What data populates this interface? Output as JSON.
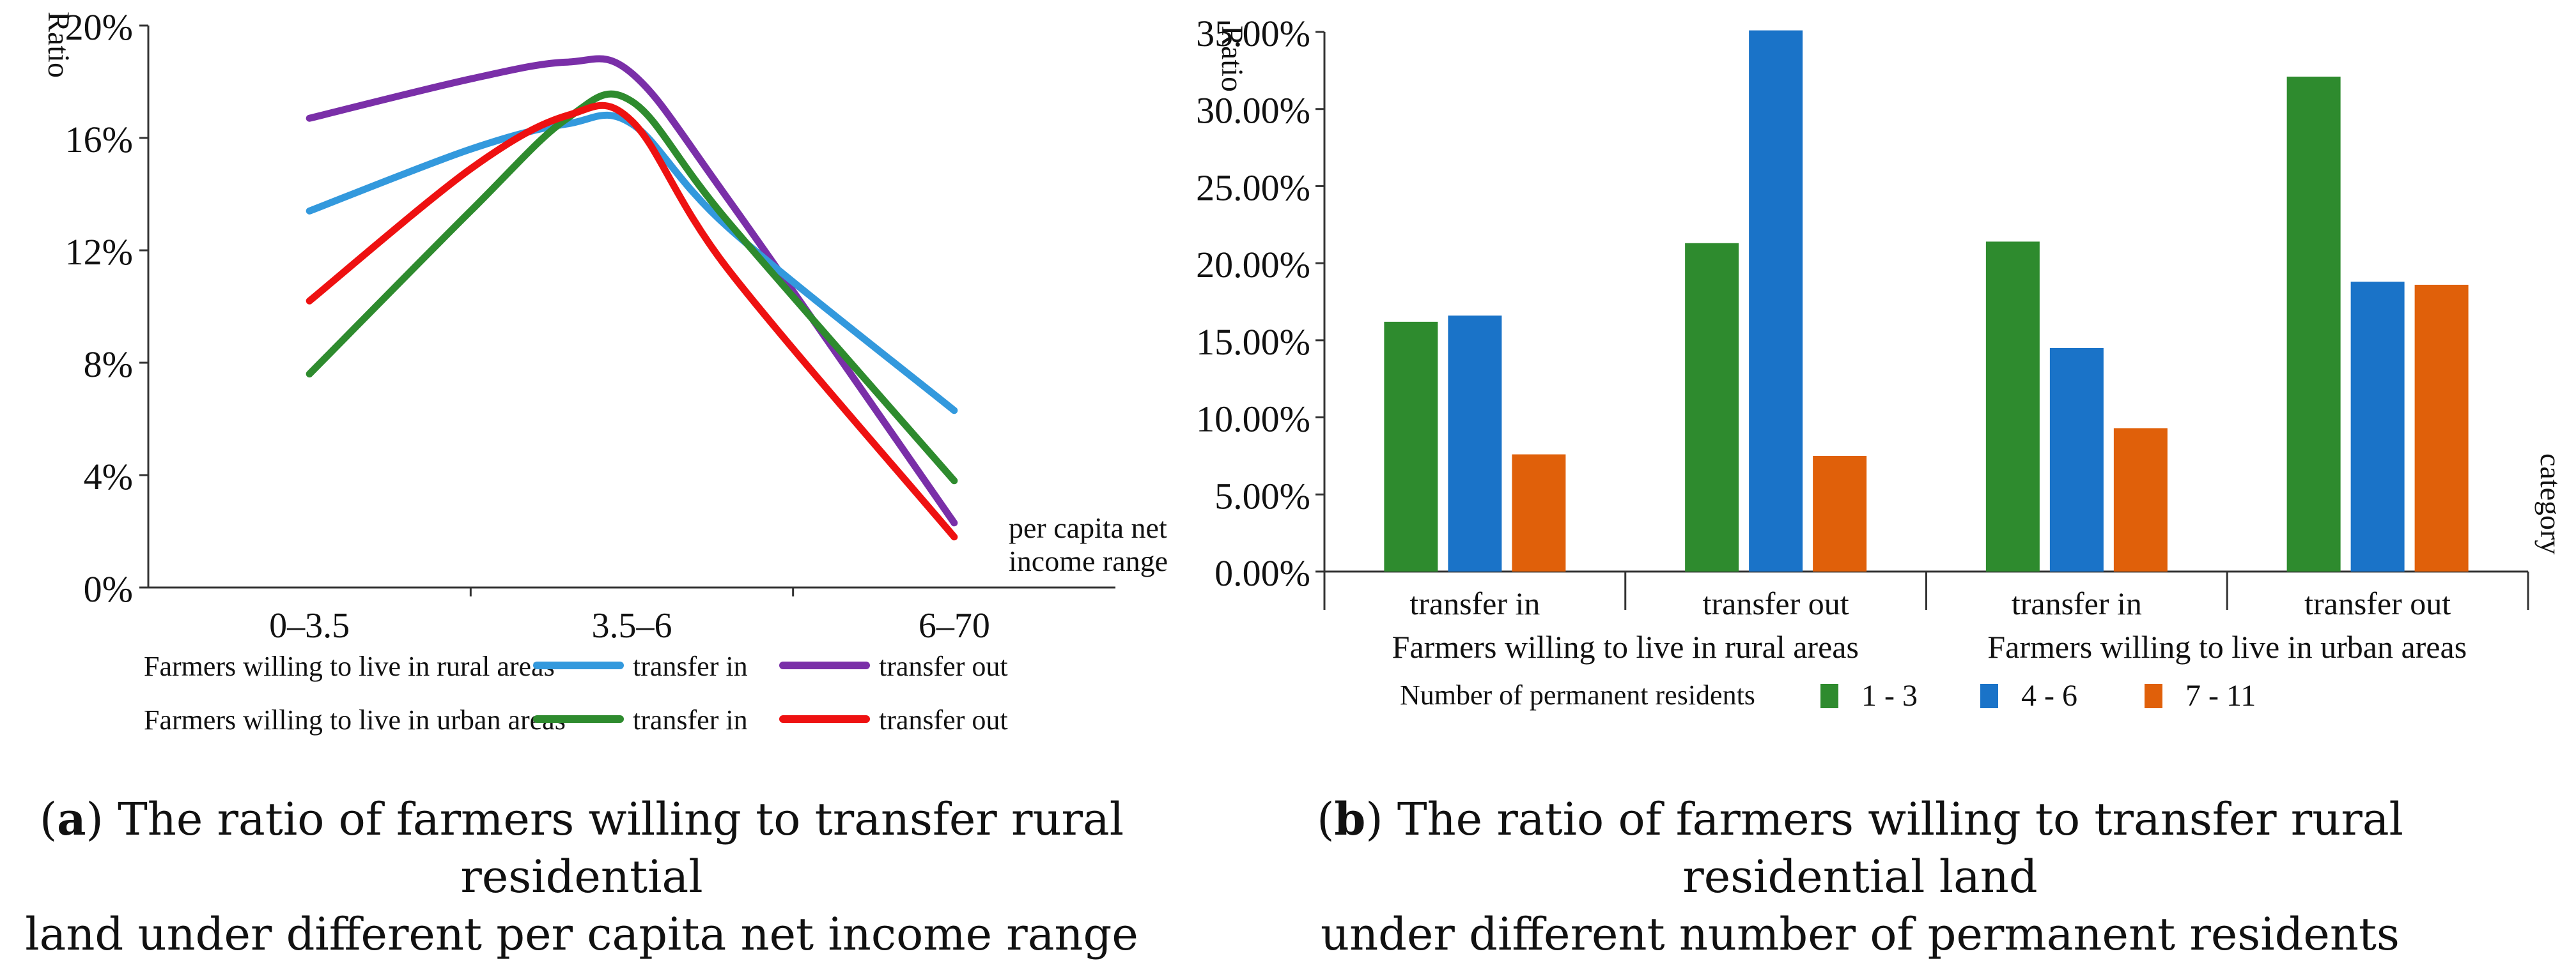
{
  "chart_data": [
    {
      "type": "line",
      "panel": "a",
      "ylabel": "Ratio",
      "xlabel": "per capita net income range",
      "categories": [
        "0–3.5",
        "3.5–6",
        "6–70"
      ],
      "ylim": [
        0,
        20
      ],
      "yticks": [
        "0%",
        "4%",
        "8%",
        "12%",
        "16%",
        "20%"
      ],
      "legend_groups": [
        "Farmers willing to live in rural areas",
        "Farmers willing to live in urban areas"
      ],
      "series": [
        {
          "name": "transfer in",
          "group": "Farmers willing to live in rural areas",
          "color": "#3399DD",
          "x": [
            0,
            0.5,
            0.8,
            1.0,
            1.3,
            2.0
          ],
          "values": [
            13.4,
            15.6,
            16.5,
            16.5,
            12.8,
            6.3
          ]
        },
        {
          "name": "transfer out",
          "group": "Farmers willing to live in rural areas",
          "color": "#7A2FA8",
          "x": [
            0,
            0.5,
            0.8,
            1.0,
            1.3,
            2.0
          ],
          "values": [
            16.7,
            18.1,
            18.7,
            18.3,
            13.8,
            2.3
          ]
        },
        {
          "name": "transfer in",
          "group": "Farmers willing to live in urban areas",
          "color": "#2E8B2E",
          "x": [
            0,
            0.5,
            0.8,
            1.0,
            1.3,
            2.0
          ],
          "values": [
            7.6,
            13.4,
            16.7,
            17.3,
            13.0,
            3.8
          ]
        },
        {
          "name": "transfer out",
          "group": "Farmers willing to live in urban areas",
          "color": "#EE1111",
          "x": [
            0,
            0.5,
            0.8,
            1.0,
            1.3,
            2.0
          ],
          "values": [
            10.2,
            14.9,
            16.8,
            16.6,
            11.3,
            1.8
          ]
        }
      ]
    },
    {
      "type": "bar",
      "panel": "b",
      "ylabel": "Ratio",
      "xlabel": "category",
      "categories": [
        "transfer in",
        "transfer out",
        "transfer in",
        "transfer out"
      ],
      "groups": [
        "Farmers willing to live in rural areas",
        "Farmers willing to live in urban areas"
      ],
      "ylim": [
        0,
        35
      ],
      "yticks": [
        "0.00%",
        "5.00%",
        "10.00%",
        "15.00%",
        "20.00%",
        "25.00%",
        "30.00%",
        "35.00%"
      ],
      "legend_title": "Number of permanent residents",
      "series": [
        {
          "name": "1 - 3",
          "color": "#2E8B2E",
          "values": [
            16.2,
            21.3,
            21.4,
            32.1
          ]
        },
        {
          "name": "4 - 6",
          "color": "#1A73C8",
          "values": [
            16.6,
            35.1,
            14.5,
            18.8
          ]
        },
        {
          "name": "7 - 11",
          "color": "#E0600A",
          "values": [
            7.6,
            7.5,
            9.3,
            18.6
          ]
        }
      ]
    }
  ],
  "captions": {
    "a": {
      "label": "a",
      "line1": "The ratio of farmers willing to transfer rural residential",
      "line2": "land under different per capita net income range"
    },
    "b": {
      "label": "b",
      "line1": "The ratio of farmers willing to transfer rural residential land",
      "line2": "under different number of permanent residents"
    }
  }
}
